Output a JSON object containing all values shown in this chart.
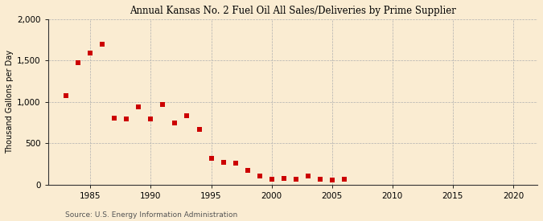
{
  "title": "Annual Kansas No. 2 Fuel Oil All Sales/Deliveries by Prime Supplier",
  "ylabel": "Thousand Gallons per Day",
  "source": "Source: U.S. Energy Information Administration",
  "background_color": "#faecd2",
  "plot_background_color": "#faecd2",
  "marker_color": "#cc0000",
  "marker": "s",
  "marker_size": 4,
  "xlim": [
    1981.5,
    2022
  ],
  "ylim": [
    0,
    2000
  ],
  "yticks": [
    0,
    500,
    1000,
    1500,
    2000
  ],
  "xticks": [
    1985,
    1990,
    1995,
    2000,
    2005,
    2010,
    2015,
    2020
  ],
  "years": [
    1983,
    1984,
    1985,
    1986,
    1987,
    1988,
    1989,
    1990,
    1991,
    1992,
    1993,
    1994,
    1995,
    1996,
    1997,
    1998,
    1999,
    2000,
    2001,
    2002,
    2003,
    2004,
    2005,
    2006
  ],
  "values": [
    1075,
    1470,
    1590,
    1700,
    800,
    790,
    940,
    790,
    970,
    750,
    830,
    665,
    320,
    270,
    260,
    175,
    105,
    65,
    75,
    70,
    100,
    65,
    60,
    70
  ]
}
